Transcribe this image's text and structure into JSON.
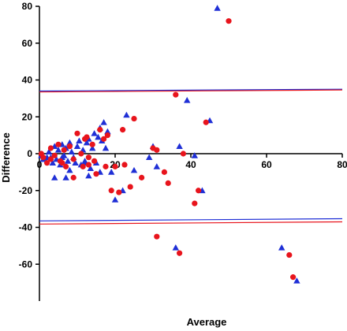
{
  "chart_data": {
    "type": "scatter",
    "title": "",
    "xlabel": "Average",
    "ylabel": "Difference",
    "xlim": [
      0,
      80
    ],
    "ylim": [
      -80,
      80
    ],
    "x_ticks": [
      0,
      20,
      40,
      60,
      80
    ],
    "y_ticks": [
      80,
      60,
      40,
      20,
      0,
      -20,
      -40,
      -60
    ],
    "x_tick_labels": [
      "0",
      "20",
      "40",
      "60",
      "80"
    ],
    "y_tick_labels": [
      "80",
      "60",
      "40",
      "20",
      "0",
      "-20",
      "-40",
      "-60"
    ],
    "grid": false,
    "legend": "none",
    "colors": {
      "blue": "#1f2fd6",
      "red": "#e8141c"
    },
    "series": [
      {
        "marker": "triangle",
        "color": "#1f2fd6",
        "points": [
          [
            0.5,
            -1
          ],
          [
            1.5,
            -3
          ],
          [
            2.5,
            1
          ],
          [
            3,
            -2
          ],
          [
            3.5,
            -5
          ],
          [
            4,
            4
          ],
          [
            4.5,
            -3
          ],
          [
            5,
            2
          ],
          [
            5.5,
            -6
          ],
          [
            6,
            5
          ],
          [
            6.5,
            -1
          ],
          [
            7,
            3
          ],
          [
            7.5,
            -4
          ],
          [
            8,
            6
          ],
          [
            8.5,
            1
          ],
          [
            9,
            -2
          ],
          [
            9.5,
            -5
          ],
          [
            10,
            4
          ],
          [
            10.5,
            7
          ],
          [
            11,
            -6
          ],
          [
            11.5,
            2
          ],
          [
            12,
            -4
          ],
          [
            12.5,
            6
          ],
          [
            13,
            8
          ],
          [
            13.5,
            -8
          ],
          [
            14,
            3
          ],
          [
            14.5,
            11
          ],
          [
            15,
            -5
          ],
          [
            15.5,
            9
          ],
          [
            16,
            14
          ],
          [
            16.5,
            7
          ],
          [
            17,
            17
          ],
          [
            17.5,
            3
          ],
          [
            18,
            12
          ],
          [
            4,
            -13
          ],
          [
            7,
            -13
          ],
          [
            8,
            -9
          ],
          [
            13,
            -12
          ],
          [
            16,
            -10
          ],
          [
            19,
            -10
          ],
          [
            20,
            -25
          ],
          [
            22,
            -20
          ],
          [
            23,
            21
          ],
          [
            25,
            -9
          ],
          [
            29,
            -2
          ],
          [
            30,
            4
          ],
          [
            31,
            -7
          ],
          [
            37,
            4
          ],
          [
            39,
            29
          ],
          [
            41,
            -1
          ],
          [
            43,
            -20
          ],
          [
            45,
            18
          ],
          [
            47,
            79
          ],
          [
            36,
            -51
          ],
          [
            64,
            -51
          ],
          [
            68,
            -69
          ],
          [
            12,
            -5
          ],
          [
            6,
            -2
          ],
          [
            2,
            -2
          ],
          [
            1,
            -3
          ]
        ]
      },
      {
        "marker": "circle",
        "color": "#e8141c",
        "points": [
          [
            0.5,
            0
          ],
          [
            1,
            -2
          ],
          [
            2,
            -5
          ],
          [
            3,
            3
          ],
          [
            4,
            -1
          ],
          [
            5,
            5
          ],
          [
            5.5,
            -4
          ],
          [
            6.5,
            2
          ],
          [
            7,
            -7
          ],
          [
            8,
            4
          ],
          [
            9,
            -3
          ],
          [
            10,
            11
          ],
          [
            11,
            0
          ],
          [
            11.5,
            -7
          ],
          [
            12,
            8
          ],
          [
            12.5,
            9
          ],
          [
            13,
            -6
          ],
          [
            14,
            5
          ],
          [
            14.5,
            -4
          ],
          [
            15,
            -11
          ],
          [
            16,
            13
          ],
          [
            17,
            8
          ],
          [
            17.5,
            -7
          ],
          [
            18,
            10
          ],
          [
            19,
            -20
          ],
          [
            20,
            -7
          ],
          [
            21,
            -21
          ],
          [
            22,
            13
          ],
          [
            22.5,
            -6
          ],
          [
            24,
            -18
          ],
          [
            25,
            19
          ],
          [
            27,
            -13
          ],
          [
            30,
            3
          ],
          [
            31,
            2
          ],
          [
            33,
            -10
          ],
          [
            34,
            -16
          ],
          [
            36,
            32
          ],
          [
            38,
            0
          ],
          [
            41,
            -27
          ],
          [
            42,
            -20
          ],
          [
            44,
            17
          ],
          [
            50,
            72
          ],
          [
            31,
            -45
          ],
          [
            37,
            -54
          ],
          [
            66,
            -55
          ],
          [
            67,
            -67
          ],
          [
            9,
            -13
          ],
          [
            13,
            -2
          ],
          [
            3,
            -3
          ],
          [
            6,
            -5
          ]
        ]
      }
    ],
    "reference_lines": [
      {
        "color": "#1f2fd6",
        "y_start": 34.0,
        "y_end": 35.0
      },
      {
        "color": "#e8141c",
        "y_start": 33.5,
        "y_end": 34.6
      },
      {
        "color": "#1f2fd6",
        "y_start": -36.5,
        "y_end": -35.3
      },
      {
        "color": "#e8141c",
        "y_start": -38.2,
        "y_end": -37.0
      }
    ]
  }
}
